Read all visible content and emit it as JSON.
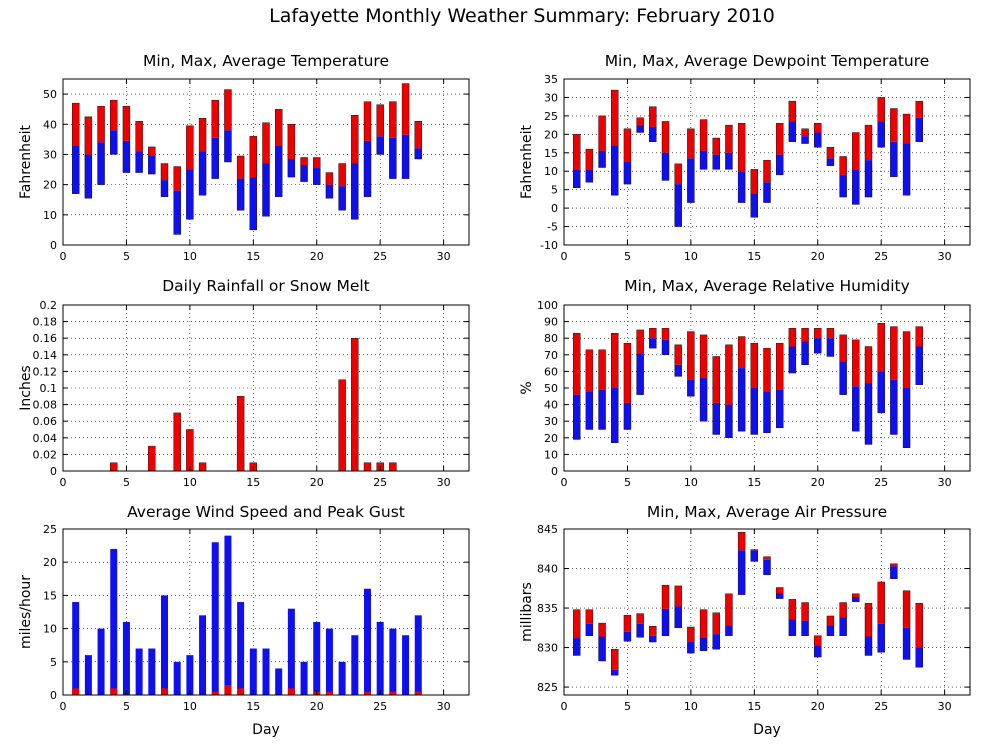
{
  "page_title": "Lafayette Monthly Weather Summary: February 2010",
  "colors": {
    "red": "#ee0000",
    "blue": "#1010ee"
  },
  "chart_data": [
    {
      "id": "temperature",
      "type": "bar",
      "title": "Min, Max, Average Temperature",
      "xlabel": "",
      "ylabel": "Fahrenheit",
      "xlim": [
        0,
        32
      ],
      "xticks": [
        0,
        5,
        10,
        15,
        20,
        25,
        30
      ],
      "ylim": [
        0,
        55
      ],
      "yticks": [
        0,
        10,
        20,
        30,
        40,
        50
      ],
      "grid": true,
      "days": [
        1,
        2,
        3,
        4,
        5,
        6,
        7,
        8,
        9,
        10,
        11,
        12,
        13,
        14,
        15,
        16,
        17,
        18,
        19,
        20,
        21,
        22,
        23,
        24,
        25,
        26,
        27,
        28
      ],
      "series": [
        {
          "name": "min",
          "values": [
            17,
            15.5,
            20,
            30,
            24,
            24,
            23.5,
            16,
            3.5,
            8.5,
            16.5,
            22,
            27.5,
            11.5,
            5,
            9.5,
            16,
            22.5,
            21,
            20,
            15.5,
            11.5,
            8.5,
            16,
            30,
            22,
            22,
            28.5
          ]
        },
        {
          "name": "avg",
          "values": [
            33,
            30,
            34,
            38,
            34.5,
            31,
            29.5,
            21.5,
            18,
            25,
            31,
            35.5,
            38,
            22,
            22.5,
            27,
            33,
            28.5,
            26.5,
            25.5,
            20,
            19.5,
            27,
            34.5,
            36,
            35.5,
            36.5,
            32
          ]
        },
        {
          "name": "max",
          "values": [
            47,
            42.5,
            46,
            48,
            46,
            41,
            32.5,
            27,
            26,
            39.5,
            42,
            48,
            51.5,
            29.5,
            36,
            40.5,
            45,
            40,
            29,
            29,
            24,
            27,
            43,
            47.5,
            46.5,
            47.5,
            53.5,
            41
          ]
        }
      ]
    },
    {
      "id": "dewpoint",
      "type": "bar",
      "title": "Min, Max, Average Dewpoint Temperature",
      "xlabel": "",
      "ylabel": "Fahrenheit",
      "xlim": [
        0,
        32
      ],
      "xticks": [
        0,
        5,
        10,
        15,
        20,
        25,
        30
      ],
      "ylim": [
        -10,
        35
      ],
      "yticks": [
        -10,
        -5,
        0,
        5,
        10,
        15,
        20,
        25,
        30,
        35
      ],
      "grid": true,
      "days": [
        1,
        2,
        3,
        4,
        5,
        6,
        7,
        8,
        9,
        10,
        11,
        12,
        13,
        14,
        15,
        16,
        17,
        18,
        19,
        20,
        21,
        22,
        23,
        24,
        25,
        26,
        27,
        28
      ],
      "series": [
        {
          "name": "min",
          "values": [
            5.5,
            7,
            11,
            3.5,
            6.5,
            20.5,
            18,
            7.5,
            -5,
            1.5,
            10.5,
            10.5,
            10.5,
            1.5,
            -2.5,
            1.5,
            9,
            18,
            17.5,
            16.5,
            11.5,
            3,
            1,
            3,
            16.5,
            8.5,
            3.5,
            18
          ]
        },
        {
          "name": "avg",
          "values": [
            10.5,
            10.5,
            15.5,
            17,
            12.5,
            22.5,
            22,
            15,
            6.5,
            13.5,
            15.5,
            14.5,
            15,
            10,
            4,
            7,
            14.5,
            23.5,
            19.5,
            20.5,
            13.5,
            9,
            10.5,
            13,
            23.5,
            18,
            17.5,
            24.5
          ]
        },
        {
          "name": "max",
          "values": [
            20,
            16,
            25,
            32,
            21.5,
            24.5,
            27.5,
            23.5,
            12,
            21.5,
            24,
            19,
            22.5,
            23,
            10.5,
            13,
            23,
            29,
            21.5,
            23,
            16.5,
            14,
            20.5,
            22.5,
            30,
            27,
            25.5,
            29
          ]
        }
      ]
    },
    {
      "id": "rainfall",
      "type": "bar",
      "title": "Daily Rainfall or Snow Melt",
      "xlabel": "",
      "ylabel": "Inches",
      "xlim": [
        0,
        32
      ],
      "xticks": [
        0,
        5,
        10,
        15,
        20,
        25,
        30
      ],
      "ylim": [
        0,
        0.2
      ],
      "yticks": [
        0,
        0.02,
        0.04,
        0.06,
        0.08,
        0.1,
        0.12,
        0.14,
        0.16,
        0.18,
        0.2
      ],
      "grid": true,
      "points": [
        {
          "x": 4,
          "value": 0.01
        },
        {
          "x": 7,
          "value": 0.03
        },
        {
          "x": 9,
          "value": 0.07
        },
        {
          "x": 10,
          "value": 0.05
        },
        {
          "x": 11,
          "value": 0.01
        },
        {
          "x": 14,
          "value": 0.09
        },
        {
          "x": 15,
          "value": 0.01
        },
        {
          "x": 22,
          "value": 0.11
        },
        {
          "x": 23,
          "value": 0.16
        },
        {
          "x": 24,
          "value": 0.01
        },
        {
          "x": 25,
          "value": 0.01
        },
        {
          "x": 26,
          "value": 0.01
        }
      ]
    },
    {
      "id": "humidity",
      "type": "bar",
      "title": "Min, Max, Average Relative Humidity",
      "xlabel": "",
      "ylabel": "%",
      "xlim": [
        0,
        32
      ],
      "xticks": [
        0,
        5,
        10,
        15,
        20,
        25,
        30
      ],
      "ylim": [
        0,
        100
      ],
      "yticks": [
        0,
        10,
        20,
        30,
        40,
        50,
        60,
        70,
        80,
        90,
        100
      ],
      "grid": true,
      "days": [
        1,
        2,
        3,
        4,
        5,
        6,
        7,
        8,
        9,
        10,
        11,
        12,
        13,
        14,
        15,
        16,
        17,
        18,
        19,
        20,
        21,
        22,
        23,
        24,
        25,
        26,
        27,
        28
      ],
      "series": [
        {
          "name": "min",
          "values": [
            19,
            25,
            25,
            17,
            25,
            46,
            74,
            70,
            57,
            45,
            30,
            22,
            20,
            24,
            22,
            23,
            26,
            59,
            64,
            71,
            69,
            46,
            24,
            16,
            35,
            22,
            14,
            52
          ]
        },
        {
          "name": "avg",
          "values": [
            46,
            48,
            49,
            50,
            41,
            71,
            80,
            79,
            64,
            55,
            56,
            41,
            40,
            62,
            50,
            48,
            49,
            75,
            78,
            80,
            80,
            66,
            51,
            53,
            60,
            55,
            50,
            75
          ]
        },
        {
          "name": "max",
          "values": [
            83,
            73,
            73,
            83,
            77,
            85,
            86,
            86,
            76,
            84,
            82,
            69,
            76,
            81,
            77,
            74,
            77,
            86,
            86,
            86,
            86,
            82,
            79,
            75,
            89,
            87,
            84,
            87
          ]
        }
      ]
    },
    {
      "id": "wind",
      "type": "bar",
      "title": "Average Wind Speed and Peak Gust",
      "xlabel": "Day",
      "ylabel": "miles/hour",
      "xlim": [
        0,
        32
      ],
      "xticks": [
        0,
        5,
        10,
        15,
        20,
        25,
        30
      ],
      "ylim": [
        0,
        25
      ],
      "yticks": [
        0,
        5,
        10,
        15,
        20,
        25
      ],
      "grid": true,
      "days": [
        1,
        2,
        3,
        4,
        5,
        6,
        7,
        8,
        9,
        10,
        11,
        12,
        13,
        14,
        15,
        16,
        17,
        18,
        19,
        20,
        21,
        22,
        23,
        24,
        25,
        26,
        27,
        28
      ],
      "series": [
        {
          "name": "average",
          "values": [
            1,
            0,
            0,
            1,
            0,
            0,
            0,
            1,
            0,
            0,
            0,
            0.5,
            1.5,
            1,
            0,
            0,
            0,
            1,
            0,
            0.5,
            0.5,
            0,
            0,
            0.5,
            0,
            0.5,
            0,
            0.5
          ]
        },
        {
          "name": "peak gust",
          "values": [
            14,
            6,
            10,
            22,
            11,
            7,
            7,
            15,
            5,
            6,
            12,
            23,
            24,
            14,
            7,
            7,
            4,
            13,
            5,
            11,
            10,
            5,
            9,
            16,
            11,
            10,
            9,
            12
          ]
        }
      ]
    },
    {
      "id": "pressure",
      "type": "bar",
      "title": "Min, Max, Average Air Pressure",
      "xlabel": "Day",
      "ylabel": "millibars",
      "xlim": [
        0,
        32
      ],
      "xticks": [
        0,
        5,
        10,
        15,
        20,
        25,
        30
      ],
      "ylim": [
        824,
        845
      ],
      "yticks": [
        825,
        830,
        835,
        840,
        845
      ],
      "grid": true,
      "days": [
        1,
        2,
        3,
        4,
        5,
        6,
        7,
        8,
        9,
        10,
        11,
        12,
        13,
        14,
        15,
        16,
        17,
        18,
        19,
        20,
        21,
        22,
        23,
        24,
        25,
        26,
        27,
        28
      ],
      "series": [
        {
          "name": "min",
          "values": [
            829,
            831.5,
            828.3,
            826.5,
            830.8,
            831.3,
            830.7,
            831.5,
            832.5,
            829.3,
            829.6,
            829.8,
            831.5,
            836.7,
            840.9,
            839.2,
            836.2,
            831.5,
            831.5,
            828.8,
            831.5,
            831.5,
            835.8,
            829,
            829.4,
            838.7,
            828.5,
            827.5
          ]
        },
        {
          "name": "avg",
          "values": [
            831.2,
            833,
            831.4,
            827.2,
            832,
            833,
            831.5,
            834.9,
            835.2,
            830.8,
            831.3,
            831.7,
            832.8,
            842.3,
            842.3,
            841.1,
            836.9,
            833.6,
            833.4,
            830.3,
            832.8,
            833.8,
            836.4,
            831.4,
            833,
            840.3,
            832.5,
            830
          ]
        },
        {
          "name": "max",
          "values": [
            834.8,
            834.8,
            833.1,
            829.8,
            834.1,
            834.3,
            832.7,
            837.9,
            837.8,
            832.6,
            834.8,
            834.4,
            836.8,
            844.6,
            842.4,
            841.5,
            837.6,
            836.1,
            835.7,
            831.5,
            834,
            835.7,
            836.8,
            835.6,
            838.3,
            840.6,
            837.2,
            835.6
          ]
        }
      ]
    }
  ]
}
